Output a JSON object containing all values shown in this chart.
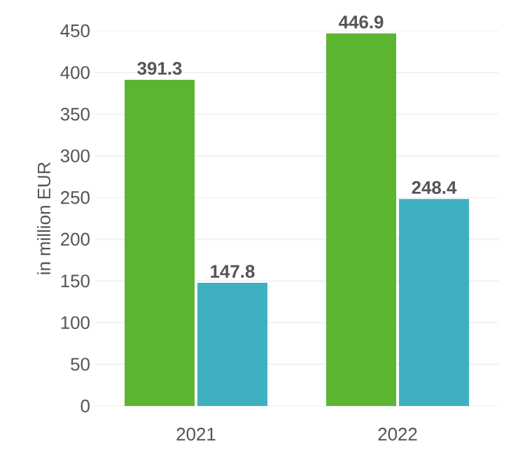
{
  "chart_data": {
    "type": "bar",
    "ylabel": "in million EUR",
    "categories": [
      "2021",
      "2022"
    ],
    "series": [
      {
        "color": "#5cb531",
        "values": [
          391.3,
          446.9
        ]
      },
      {
        "color": "#3fb0c0",
        "values": [
          147.8,
          248.4
        ]
      }
    ],
    "ylim": [
      0,
      450
    ],
    "yticks": [
      0,
      50,
      100,
      150,
      200,
      250,
      300,
      350,
      400,
      450
    ],
    "grid": "y",
    "data_labels": true
  }
}
